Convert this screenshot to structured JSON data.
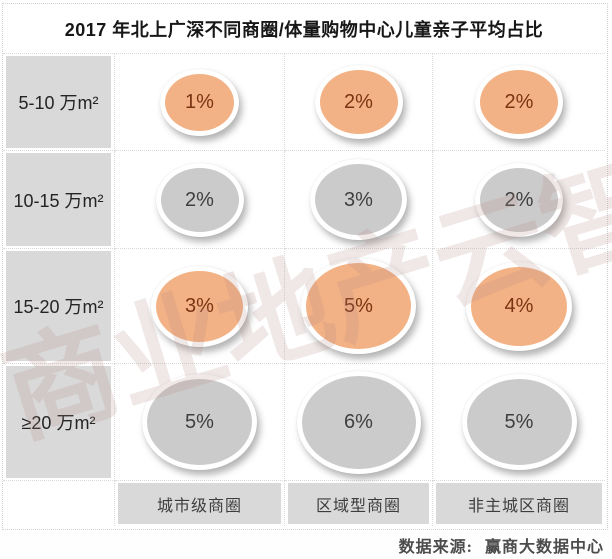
{
  "title": "2017 年北上广深不同商圈/体量购物中心儿童亲子平均占比",
  "watermark": "商业地产云智库",
  "footer": {
    "label": "数据来源:",
    "value": "赢商大数据中心"
  },
  "colors": {
    "orange": "#F3B285",
    "gray": "#CCCBCB",
    "label_bg": "#D9D9D9",
    "orange_text": "#7B3413",
    "gray_text": "#3F3F3F"
  },
  "chart_data": {
    "type": "bubble-matrix",
    "title": "2017 年北上广深不同商圈/体量购物中心儿童亲子平均占比",
    "rows": [
      "5-10 万m²",
      "10-15 万m²",
      "15-20 万m²",
      "≥20 万m²"
    ],
    "columns": [
      "城市级商圈",
      "区域型商圈",
      "非主城区商圈"
    ],
    "values": [
      [
        1,
        2,
        2
      ],
      [
        2,
        3,
        2
      ],
      [
        3,
        5,
        4
      ],
      [
        5,
        6,
        5
      ]
    ],
    "unit": "%",
    "row_fill": [
      "orange",
      "gray",
      "orange",
      "gray"
    ],
    "legend": "bubble size and fill indicate average kids/family-business share; orange rows highlight 5-10万m² and 15-20万m² volume segments",
    "source": "数据来源: 赢商大数据中心"
  }
}
